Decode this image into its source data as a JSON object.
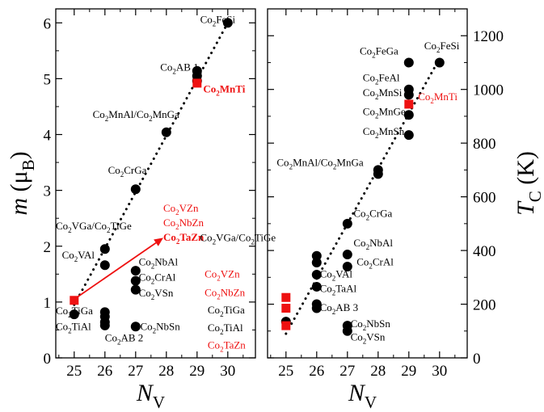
{
  "colors": {
    "axis": "#000000",
    "black": "#000000",
    "red": "#ee1111"
  },
  "chart_data": [
    {
      "type": "scatter",
      "panel": "left",
      "xlabel": "N",
      "xlabel_sub": "V",
      "ylabel": "m (μ",
      "ylabel_sub": "B",
      "ylabel_close": ")",
      "xlim": [
        24.4,
        30.9
      ],
      "ylim": [
        0,
        6.25
      ],
      "xticks": [
        "25",
        "26",
        "27",
        "28",
        "29",
        "30"
      ],
      "yticks": [
        "0",
        "1",
        "2",
        "3",
        "4",
        "5",
        "6"
      ],
      "trend_line": {
        "style": "dotted",
        "from": [
          25,
          0.95
        ],
        "to": [
          30,
          6.0
        ]
      },
      "arrow": {
        "color": "red",
        "from": [
          25.0,
          1.05
        ],
        "to": [
          27.9,
          2.15
        ]
      },
      "series": [
        {
          "marker": "circle",
          "color": "black",
          "points": [
            {
              "x": 25,
              "y": 0.78
            },
            {
              "x": 26,
              "y": 1.95
            },
            {
              "x": 26,
              "y": 1.66
            },
            {
              "x": 26,
              "y": 0.82
            },
            {
              "x": 26,
              "y": 0.74
            },
            {
              "x": 26,
              "y": 0.64
            },
            {
              "x": 26,
              "y": 0.58
            },
            {
              "x": 27,
              "y": 3.02
            },
            {
              "x": 27,
              "y": 1.56
            },
            {
              "x": 27,
              "y": 1.38
            },
            {
              "x": 27,
              "y": 1.22
            },
            {
              "x": 27,
              "y": 0.56
            },
            {
              "x": 28,
              "y": 4.04
            },
            {
              "x": 29,
              "y": 5.14
            },
            {
              "x": 29,
              "y": 5.05
            },
            {
              "x": 29,
              "y": 4.96
            },
            {
              "x": 30,
              "y": 6.0
            }
          ]
        },
        {
          "marker": "square",
          "color": "red",
          "points": [
            {
              "x": 25,
              "y": 1.03
            },
            {
              "x": 29,
              "y": 4.92
            }
          ]
        }
      ],
      "annotations": [
        {
          "text": "Co",
          "sub": "2",
          "rest": "FeSi",
          "color": "black",
          "bold": false,
          "at": [
            29.1,
            6.0
          ]
        },
        {
          "text": "Co",
          "sub": "2",
          "rest": "AB 1",
          "color": "black",
          "bold": false,
          "at": [
            27.8,
            5.14
          ]
        },
        {
          "text": "Co",
          "sub": "2",
          "rest": "MnTi",
          "color": "red",
          "bold": true,
          "at": [
            29.2,
            4.75
          ]
        },
        {
          "text": "Co",
          "sub": "2",
          "rest": "MnAl/Co",
          "sub2": "2",
          "rest2": "MnGa",
          "color": "black",
          "bold": false,
          "at": [
            25.6,
            4.3
          ]
        },
        {
          "text": "Co",
          "sub": "2",
          "rest": "CrGa",
          "color": "black",
          "bold": false,
          "at": [
            26.1,
            3.3
          ]
        },
        {
          "text": "Co",
          "sub": "2",
          "rest": "VGa/Co",
          "sub2": "2",
          "rest2": "TiGe",
          "color": "black",
          "bold": false,
          "at": [
            24.4,
            2.3
          ]
        },
        {
          "text": "Co",
          "sub": "2",
          "rest": "VAl",
          "color": "black",
          "bold": false,
          "at": [
            24.6,
            1.78
          ]
        },
        {
          "text": "Co",
          "sub": "2",
          "rest": "NbAl",
          "color": "black",
          "bold": false,
          "at": [
            27.1,
            1.66
          ]
        },
        {
          "text": "Co",
          "sub": "2",
          "rest": "CrAl",
          "color": "black",
          "bold": false,
          "at": [
            27.1,
            1.38
          ]
        },
        {
          "text": "Co",
          "sub": "2",
          "rest": "VSn",
          "color": "black",
          "bold": false,
          "at": [
            27.1,
            1.1
          ]
        },
        {
          "text": "Co",
          "sub": "2",
          "rest": "TiGa",
          "color": "black",
          "bold": false,
          "at": [
            24.4,
            0.78
          ]
        },
        {
          "text": "Co",
          "sub": "2",
          "rest": "TiAl",
          "color": "black",
          "bold": false,
          "at": [
            24.4,
            0.5
          ]
        },
        {
          "text": "Co",
          "sub": "2",
          "rest": "AB 2",
          "color": "black",
          "bold": false,
          "at": [
            26.0,
            0.3
          ]
        },
        {
          "text": "Co",
          "sub": "2",
          "rest": "NbSn",
          "color": "black",
          "bold": false,
          "at": [
            27.15,
            0.5
          ]
        },
        {
          "text": "Co",
          "sub": "2",
          "rest": "VZn",
          "color": "red",
          "bold": false,
          "at": [
            27.9,
            2.62
          ]
        },
        {
          "text": "Co",
          "sub": "2",
          "rest": "NbZn",
          "color": "red",
          "bold": false,
          "at": [
            27.9,
            2.36
          ]
        },
        {
          "text": "Co",
          "sub": "2",
          "rest": "TaZn",
          "color": "red",
          "bold": true,
          "at": [
            27.9,
            2.1
          ]
        }
      ]
    },
    {
      "type": "scatter",
      "panel": "right",
      "xlabel": "N",
      "xlabel_sub": "V",
      "ylabel": "T",
      "ylabel_sub": "C",
      "ylabel_close": " (K)",
      "xlim": [
        24.4,
        30.9
      ],
      "ylim": [
        0,
        1300
      ],
      "xticks": [
        "25",
        "26",
        "27",
        "28",
        "29",
        "30"
      ],
      "yticks": [
        "0",
        "200",
        "400",
        "600",
        "800",
        "1000",
        "1200"
      ],
      "trend_line": {
        "style": "dotted",
        "from": [
          25,
          90
        ],
        "to": [
          30,
          1115
        ]
      },
      "series": [
        {
          "marker": "circle",
          "color": "black",
          "points": [
            {
              "x": 25,
              "y": 135
            },
            {
              "x": 26,
              "y": 380
            },
            {
              "x": 26,
              "y": 355
            },
            {
              "x": 26,
              "y": 310
            },
            {
              "x": 26,
              "y": 265
            },
            {
              "x": 26,
              "y": 200
            },
            {
              "x": 26,
              "y": 185
            },
            {
              "x": 27,
              "y": 500
            },
            {
              "x": 27,
              "y": 385
            },
            {
              "x": 27,
              "y": 340
            },
            {
              "x": 27,
              "y": 120
            },
            {
              "x": 27,
              "y": 100
            },
            {
              "x": 28,
              "y": 700
            },
            {
              "x": 28,
              "y": 685
            },
            {
              "x": 29,
              "y": 1100
            },
            {
              "x": 29,
              "y": 1000
            },
            {
              "x": 29,
              "y": 980
            },
            {
              "x": 29,
              "y": 905
            },
            {
              "x": 29,
              "y": 830
            },
            {
              "x": 30,
              "y": 1100
            }
          ]
        },
        {
          "marker": "square",
          "color": "red",
          "points": [
            {
              "x": 25,
              "y": 225
            },
            {
              "x": 25,
              "y": 185
            },
            {
              "x": 25,
              "y": 120
            },
            {
              "x": 29,
              "y": 945
            }
          ]
        }
      ],
      "annotations": [
        {
          "text": "Co",
          "sub": "2",
          "rest": "FeGa",
          "color": "black",
          "bold": false,
          "at": [
            27.4,
            1130
          ]
        },
        {
          "text": "Co",
          "sub": "2",
          "rest": "FeSi",
          "color": "black",
          "bold": false,
          "at": [
            29.5,
            1150
          ]
        },
        {
          "text": "Co",
          "sub": "2",
          "rest": "FeAl",
          "color": "black",
          "bold": false,
          "at": [
            27.5,
            1030
          ]
        },
        {
          "text": "Co",
          "sub": "2",
          "rest": "MnSi",
          "color": "black",
          "bold": false,
          "at": [
            27.5,
            975
          ]
        },
        {
          "text": "Co",
          "sub": "2",
          "rest": "MnTi",
          "color": "red",
          "bold": false,
          "at": [
            29.3,
            960
          ]
        },
        {
          "text": "Co",
          "sub": "2",
          "rest": "MnGe",
          "color": "black",
          "bold": false,
          "at": [
            27.5,
            905
          ]
        },
        {
          "text": "Co",
          "sub": "2",
          "rest": "MnSn",
          "color": "black",
          "bold": false,
          "at": [
            27.5,
            830
          ]
        },
        {
          "text": "Co",
          "sub": "2",
          "rest": "MnAl/Co",
          "sub2": "2",
          "rest2": "MnGa",
          "color": "black",
          "bold": false,
          "at": [
            24.7,
            715
          ]
        },
        {
          "text": "Co",
          "sub": "2",
          "rest": "CrGa",
          "color": "black",
          "bold": false,
          "at": [
            27.2,
            525
          ]
        },
        {
          "text": "Co",
          "sub": "2",
          "rest": "VGa/Co",
          "sub2": "2",
          "rest2": "TiGe",
          "color": "black",
          "bold": false,
          "at": [
            22.2,
            435
          ]
        },
        {
          "text": "Co",
          "sub": "2",
          "rest": "NbAl",
          "color": "black",
          "bold": false,
          "at": [
            27.2,
            415
          ]
        },
        {
          "text": "Co",
          "sub": "2",
          "rest": "CrAl",
          "color": "black",
          "bold": false,
          "at": [
            27.3,
            345
          ]
        },
        {
          "text": "Co",
          "sub": "2",
          "rest": "VAl",
          "color": "black",
          "bold": false,
          "at": [
            26.1,
            300
          ]
        },
        {
          "text": "Co",
          "sub": "2",
          "rest": "TaAl",
          "color": "black",
          "bold": false,
          "at": [
            26.1,
            245
          ]
        },
        {
          "text": "Co",
          "sub": "2",
          "rest": "AB 3",
          "color": "black",
          "bold": false,
          "at": [
            26.1,
            175
          ]
        },
        {
          "text": "Co",
          "sub": "2",
          "rest": "NbSn",
          "color": "black",
          "bold": false,
          "at": [
            27.1,
            115
          ]
        },
        {
          "text": "Co",
          "sub": "2",
          "rest": "VSn",
          "color": "black",
          "bold": false,
          "at": [
            27.1,
            65
          ]
        },
        {
          "text": "Co",
          "sub": "2",
          "rest": "VZn",
          "color": "red",
          "bold": false,
          "at": [
            22.35,
            300
          ]
        },
        {
          "text": "Co",
          "sub": "2",
          "rest": "NbZn",
          "color": "red",
          "bold": false,
          "at": [
            22.35,
            230
          ]
        },
        {
          "text": "Co",
          "sub": "2",
          "rest": "TiGa",
          "color": "black",
          "bold": false,
          "at": [
            22.45,
            165
          ]
        },
        {
          "text": "Co",
          "sub": "2",
          "rest": "TiAl",
          "color": "black",
          "bold": false,
          "at": [
            22.45,
            100
          ]
        },
        {
          "text": "Co",
          "sub": "2",
          "rest": "TaZn",
          "color": "red",
          "bold": false,
          "at": [
            22.45,
            35
          ]
        }
      ]
    }
  ]
}
